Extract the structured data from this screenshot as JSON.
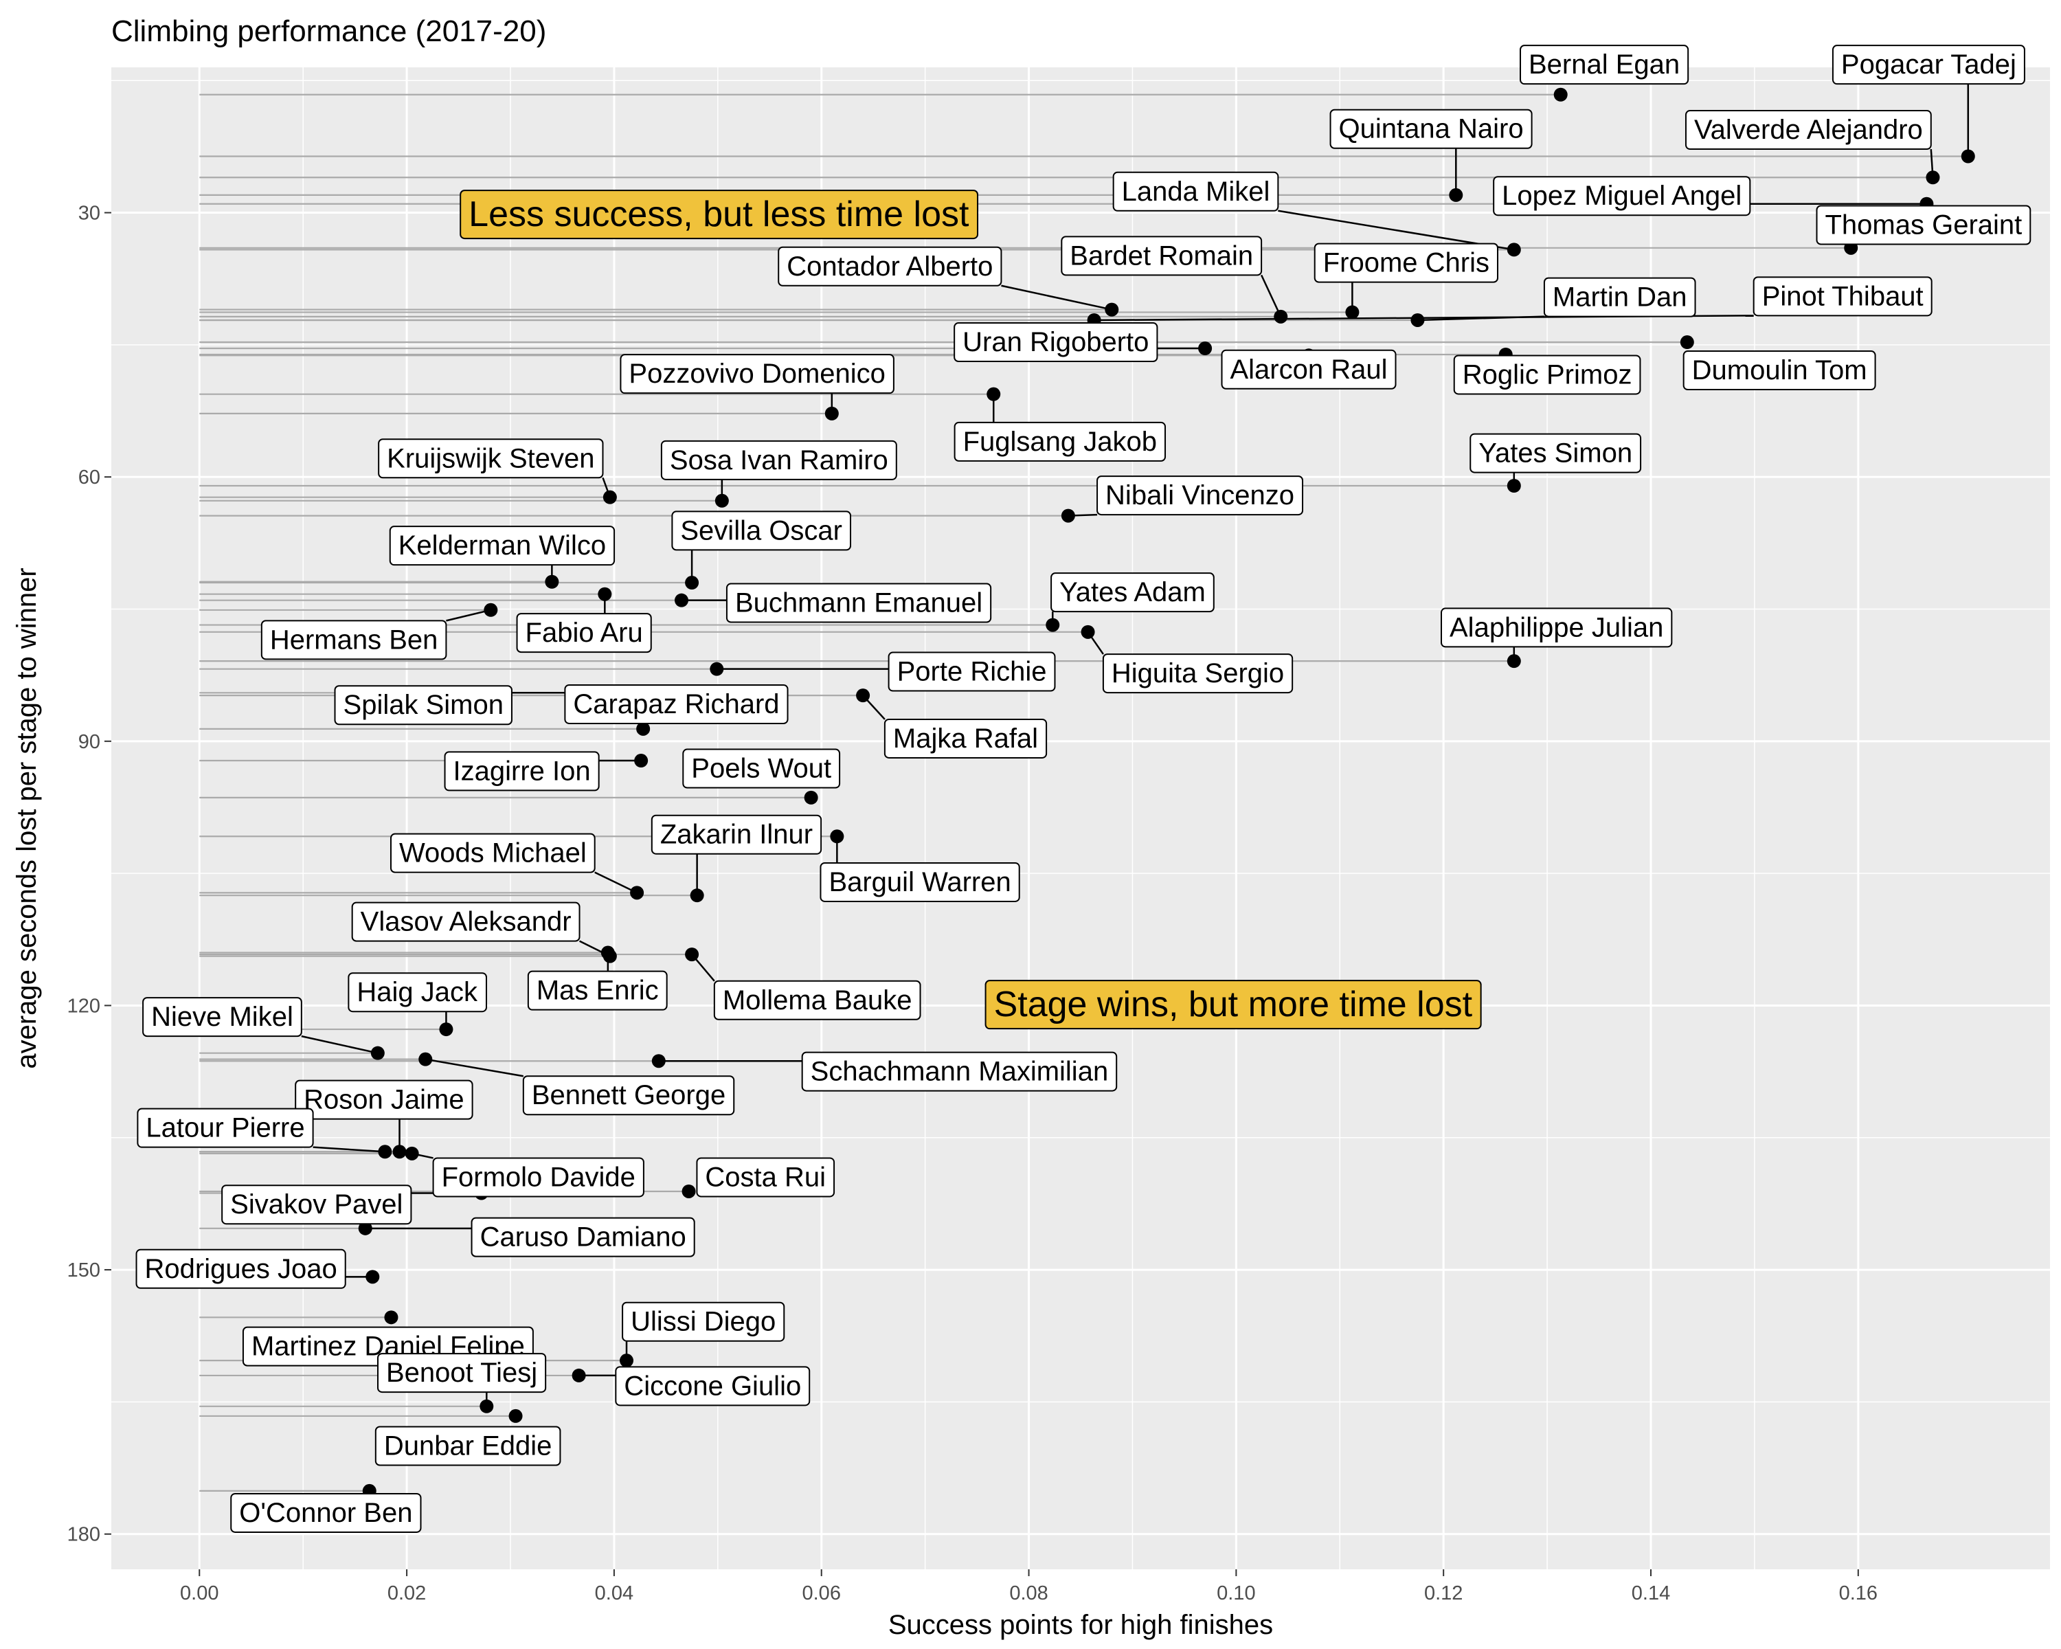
{
  "chart_data": {
    "type": "scatter",
    "title": "Climbing performance (2017-20)",
    "xlabel": "Success points for high finishes",
    "ylabel": "average seconds lost per stage to winner",
    "xlim": [
      -0.0085,
      0.1785
    ],
    "ylim": [
      13.5,
      184
    ],
    "y_reversed": true,
    "x_ticks": [
      0.0,
      0.02,
      0.04,
      0.06,
      0.08,
      0.1,
      0.12,
      0.14,
      0.16
    ],
    "x_tick_labels": [
      "0.00",
      "0.02",
      "0.04",
      "0.06",
      "0.08",
      "0.10",
      "0.12",
      "0.14",
      "0.16"
    ],
    "y_ticks": [
      30,
      60,
      90,
      120,
      150,
      180
    ],
    "y_tick_labels": [
      "30",
      "60",
      "90",
      "120",
      "150",
      "180"
    ],
    "grid": true,
    "panel_background": "#ebebeb",
    "grid_color": "#ffffff",
    "point_color": "#000000",
    "segment_color": "#aaaaaa",
    "annotation_fill": "#f0c23b",
    "annotations": [
      {
        "text": "Less success, but less time lost",
        "x": 0.0501,
        "y": 30.2
      },
      {
        "text": "Stage wins, but more time lost",
        "x": 0.0997,
        "y": 119.9
      }
    ],
    "points": [
      {
        "name": "Bernal Egan",
        "x": 0.1313,
        "y": 16.6,
        "lx": 0.1355,
        "ly": 13.2
      },
      {
        "name": "Pogacar Tadej",
        "x": 0.1706,
        "y": 23.6,
        "lx": 0.1668,
        "ly": 13.2
      },
      {
        "name": "Quintana Nairo",
        "x": 0.1212,
        "y": 28.0,
        "lx": 0.1188,
        "ly": 20.5
      },
      {
        "name": "Valverde Alejandro",
        "x": 0.1672,
        "y": 26.0,
        "lx": 0.1552,
        "ly": 20.6
      },
      {
        "name": "Lopez Miguel Angel",
        "x": 0.1666,
        "y": 29.0,
        "lx": 0.1372,
        "ly": 28.1
      },
      {
        "name": "Landa Mikel",
        "x": 0.1268,
        "y": 34.2,
        "lx": 0.0961,
        "ly": 27.6
      },
      {
        "name": "Thomas Geraint",
        "x": 0.1593,
        "y": 34.0,
        "lx": 0.1663,
        "ly": 31.4
      },
      {
        "name": "Froome Chris",
        "x": 0.1112,
        "y": 41.3,
        "lx": 0.1164,
        "ly": 35.7
      },
      {
        "name": "Bardet Romain",
        "x": 0.1043,
        "y": 41.8,
        "lx": 0.0928,
        "ly": 34.9
      },
      {
        "name": "Contador Alberto",
        "x": 0.088,
        "y": 41.0,
        "lx": 0.0666,
        "ly": 36.1
      },
      {
        "name": "Martin Dan",
        "x": 0.1175,
        "y": 42.2,
        "lx": 0.137,
        "ly": 39.6
      },
      {
        "name": "Pinot Thibaut",
        "x": 0.0863,
        "y": 42.2,
        "lx": 0.1585,
        "ly": 39.5
      },
      {
        "name": "Uran Rigoberto",
        "x": 0.097,
        "y": 45.4,
        "lx": 0.0826,
        "ly": 44.7
      },
      {
        "name": "Dumoulin Tom",
        "x": 0.1435,
        "y": 44.7,
        "lx": 0.1524,
        "ly": 47.9
      },
      {
        "name": "Roglic Primoz",
        "x": 0.126,
        "y": 46.1,
        "lx": 0.13,
        "ly": 48.4
      },
      {
        "name": "Alarcon Raul",
        "x": 0.107,
        "y": 46.2,
        "lx": 0.107,
        "ly": 47.8
      },
      {
        "name": "Fuglsang Jakob",
        "x": 0.0766,
        "y": 50.6,
        "lx": 0.083,
        "ly": 56.0
      },
      {
        "name": "Pozzovivo Domenico",
        "x": 0.061,
        "y": 52.8,
        "lx": 0.0538,
        "ly": 48.3
      },
      {
        "name": "Yates Simon",
        "x": 0.1268,
        "y": 61.0,
        "lx": 0.1308,
        "ly": 57.3
      },
      {
        "name": "Nibali Vincenzo",
        "x": 0.0838,
        "y": 64.4,
        "lx": 0.0965,
        "ly": 62.1
      },
      {
        "name": "Kruijswijk Steven",
        "x": 0.0396,
        "y": 62.3,
        "lx": 0.0281,
        "ly": 57.9
      },
      {
        "name": "Sosa Ivan Ramiro",
        "x": 0.0504,
        "y": 62.7,
        "lx": 0.0559,
        "ly": 58.1
      },
      {
        "name": "Sevilla Oscar",
        "x": 0.0475,
        "y": 72.0,
        "lx": 0.0542,
        "ly": 66.1
      },
      {
        "name": "Kelderman Wilco",
        "x": 0.034,
        "y": 71.9,
        "lx": 0.0292,
        "ly": 67.8
      },
      {
        "name": "Buchmann Emanuel",
        "x": 0.0465,
        "y": 74.0,
        "lx": 0.0636,
        "ly": 74.3
      },
      {
        "name": "Fabio Aru",
        "x": 0.0391,
        "y": 73.3,
        "lx": 0.0371,
        "ly": 77.7
      },
      {
        "name": "Hermans Ben",
        "x": 0.0281,
        "y": 75.1,
        "lx": 0.0149,
        "ly": 78.5
      },
      {
        "name": "Yates Adam",
        "x": 0.0823,
        "y": 76.8,
        "lx": 0.09,
        "ly": 73.1
      },
      {
        "name": "Higuita Sergio",
        "x": 0.0857,
        "y": 77.6,
        "lx": 0.0963,
        "ly": 82.3
      },
      {
        "name": "Alaphilippe Julian",
        "x": 0.1268,
        "y": 80.9,
        "lx": 0.1309,
        "ly": 77.1
      },
      {
        "name": "Porte Richie",
        "x": 0.0499,
        "y": 81.8,
        "lx": 0.0745,
        "ly": 82.1
      },
      {
        "name": "Spilak Simon",
        "x": 0.041,
        "y": 84.5,
        "lx": 0.0216,
        "ly": 85.9
      },
      {
        "name": "Carapaz Richard",
        "x": 0.0428,
        "y": 88.6,
        "lx": 0.046,
        "ly": 85.8
      },
      {
        "name": "Majka Rafal",
        "x": 0.064,
        "y": 84.8,
        "lx": 0.0739,
        "ly": 89.7
      },
      {
        "name": "Izagirre Ion",
        "x": 0.0426,
        "y": 92.2,
        "lx": 0.0311,
        "ly": 93.4
      },
      {
        "name": "Poels Wout",
        "x": 0.059,
        "y": 96.4,
        "lx": 0.0542,
        "ly": 93.1
      },
      {
        "name": "Woods Michael",
        "x": 0.0422,
        "y": 107.2,
        "lx": 0.0283,
        "ly": 102.7
      },
      {
        "name": "Zakarin Ilnur",
        "x": 0.048,
        "y": 107.5,
        "lx": 0.0518,
        "ly": 100.6
      },
      {
        "name": "Barguil Warren",
        "x": 0.0615,
        "y": 100.8,
        "lx": 0.0695,
        "ly": 106.0
      },
      {
        "name": "Vlasov Aleksandr",
        "x": 0.0396,
        "y": 114.4,
        "lx": 0.0257,
        "ly": 110.5
      },
      {
        "name": "Mollema Bauke",
        "x": 0.0475,
        "y": 114.2,
        "lx": 0.0596,
        "ly": 119.4
      },
      {
        "name": "Mas Enric",
        "x": 0.0394,
        "y": 114.0,
        "lx": 0.0384,
        "ly": 118.3
      },
      {
        "name": "Haig Jack",
        "x": 0.0238,
        "y": 122.7,
        "lx": 0.021,
        "ly": 118.5
      },
      {
        "name": "Nieve Mikel",
        "x": 0.0172,
        "y": 125.4,
        "lx": 0.0022,
        "ly": 121.3
      },
      {
        "name": "Schachmann Maximilian",
        "x": 0.0443,
        "y": 126.3,
        "lx": 0.0733,
        "ly": 127.5
      },
      {
        "name": "Bennett George",
        "x": 0.0218,
        "y": 126.1,
        "lx": 0.0414,
        "ly": 130.2
      },
      {
        "name": "Roson Jaime",
        "x": 0.0193,
        "y": 136.6,
        "lx": 0.0178,
        "ly": 130.7
      },
      {
        "name": "Latour Pierre",
        "x": 0.0179,
        "y": 136.6,
        "lx": 0.0025,
        "ly": 133.9
      },
      {
        "name": "Formolo Davide",
        "x": 0.0205,
        "y": 136.8,
        "lx": 0.0327,
        "ly": 139.5
      },
      {
        "name": "Costa Rui",
        "x": 0.0472,
        "y": 141.1,
        "lx": 0.0546,
        "ly": 139.5
      },
      {
        "name": "Sivakov Pavel",
        "x": 0.0272,
        "y": 141.3,
        "lx": 0.0113,
        "ly": 142.6
      },
      {
        "name": "Caruso Damiano",
        "x": 0.016,
        "y": 145.3,
        "lx": 0.037,
        "ly": 146.3
      },
      {
        "name": "Rodrigues Joao",
        "x": 0.0167,
        "y": 150.8,
        "lx": 0.004,
        "ly": 149.9
      },
      {
        "name": "Martinez Daniel Felipe",
        "x": 0.0185,
        "y": 155.4,
        "lx": 0.0182,
        "ly": 158.7
      },
      {
        "name": "Ulissi Diego",
        "x": 0.0412,
        "y": 160.3,
        "lx": 0.0486,
        "ly": 155.9
      },
      {
        "name": "Ciccone Giulio",
        "x": 0.0366,
        "y": 162.0,
        "lx": 0.0495,
        "ly": 163.2
      },
      {
        "name": "Benoot Tiesj",
        "x": 0.0277,
        "y": 165.5,
        "lx": 0.0253,
        "ly": 161.7
      },
      {
        "name": "Dunbar Eddie",
        "x": 0.0305,
        "y": 166.6,
        "lx": 0.0259,
        "ly": 170.0
      },
      {
        "name": "O'Connor Ben",
        "x": 0.0164,
        "y": 175.1,
        "lx": 0.0122,
        "ly": 177.6
      }
    ]
  }
}
